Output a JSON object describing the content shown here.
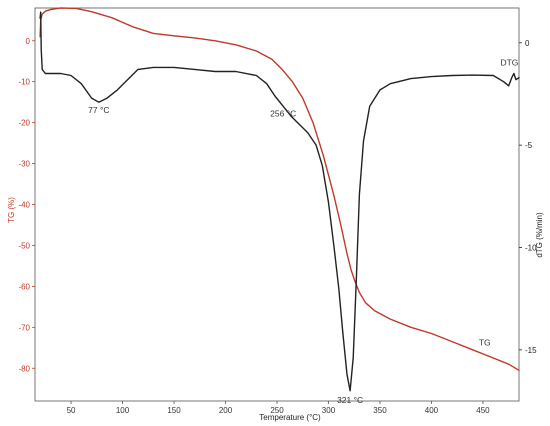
{
  "chart_data": {
    "type": "line",
    "xlabel": "Temperature (°C)",
    "ylabel_left": "TG (%)",
    "ylabel_right": "dTG (%/min)",
    "xlim": [
      15,
      485
    ],
    "ylim_left": [
      -88,
      8
    ],
    "ylim_right": [
      -17.5,
      1.7
    ],
    "x_ticks": [
      "50",
      "100",
      "150",
      "200",
      "250",
      "300",
      "350",
      "400",
      "450"
    ],
    "x_tick_values": [
      50,
      100,
      150,
      200,
      250,
      300,
      350,
      400,
      450
    ],
    "y_left_ticks": [
      "0",
      "-10",
      "-20",
      "-30",
      "-40",
      "-50",
      "-60",
      "-70",
      "-80"
    ],
    "y_left_tick_values": [
      0,
      -10,
      -20,
      -30,
      -40,
      -50,
      -60,
      -70,
      -80
    ],
    "y_right_ticks": [
      "0",
      "-5",
      "-10",
      "-15"
    ],
    "y_right_tick_values": [
      0,
      -5,
      -10,
      -15
    ],
    "colors": {
      "tg": "#c0392b",
      "dtg": "#222222",
      "left_axis": "#c0392b",
      "right_axis": "#222222"
    },
    "series": [
      {
        "name": "TG",
        "axis": "left",
        "x": [
          20,
          20.5,
          22,
          25,
          30,
          40,
          55,
          70,
          90,
          110,
          130,
          150,
          170,
          190,
          210,
          230,
          245,
          255,
          265,
          275,
          285,
          295,
          305,
          312,
          318,
          322,
          326,
          330,
          336,
          345,
          360,
          380,
          400,
          420,
          440,
          460,
          475,
          485
        ],
        "y": [
          1,
          5,
          6.5,
          7.2,
          7.6,
          8,
          7.9,
          7.1,
          5.6,
          3.4,
          1.8,
          1.2,
          0.7,
          0,
          -1,
          -2.5,
          -4.5,
          -7,
          -10,
          -14,
          -20,
          -28,
          -37.5,
          -45,
          -52,
          -56,
          -59,
          -61.5,
          -64,
          -66,
          -68,
          -70,
          -71.5,
          -73.5,
          -75.5,
          -77.5,
          -79,
          -80.5
        ]
      },
      {
        "name": "DTG",
        "axis": "right",
        "x": [
          20,
          20.5,
          21,
          22,
          25,
          30,
          40,
          50,
          60,
          70,
          77,
          85,
          95,
          105,
          115,
          130,
          150,
          170,
          190,
          210,
          230,
          240,
          248,
          256,
          264,
          272,
          280,
          288,
          294,
          300,
          305,
          310,
          314,
          318,
          321,
          324,
          327,
          330,
          334,
          340,
          350,
          360,
          380,
          400,
          420,
          440,
          460,
          470,
          475,
          478,
          480,
          482,
          485
        ],
        "y": [
          1.2,
          1.5,
          -0.3,
          -1.3,
          -1.5,
          -1.5,
          -1.5,
          -1.6,
          -2.0,
          -2.7,
          -2.9,
          -2.7,
          -2.3,
          -1.8,
          -1.3,
          -1.2,
          -1.2,
          -1.3,
          -1.4,
          -1.4,
          -1.6,
          -2.0,
          -2.6,
          -3.1,
          -3.6,
          -4.0,
          -4.4,
          -5.0,
          -6.0,
          -7.8,
          -9.8,
          -12.0,
          -14.2,
          -16.2,
          -17.0,
          -15.4,
          -11.6,
          -7.4,
          -4.8,
          -3.1,
          -2.3,
          -2.0,
          -1.75,
          -1.65,
          -1.6,
          -1.58,
          -1.6,
          -1.9,
          -2.1,
          -1.7,
          -1.5,
          -1.8,
          -1.7
        ]
      }
    ],
    "annotations": [
      {
        "label": "77 °C",
        "x": 77,
        "axis": "right",
        "y": -2.9
      },
      {
        "label": "256 °C",
        "x": 256,
        "axis": "right",
        "y": -3.1
      },
      {
        "label": "321 °C",
        "x": 321,
        "axis": "right",
        "y": -17.0
      },
      {
        "label": "DTG",
        "x": 467,
        "axis": "right",
        "y": -1.4
      },
      {
        "label": "TG",
        "x": 446,
        "axis": "left",
        "y": -74.5
      }
    ]
  }
}
